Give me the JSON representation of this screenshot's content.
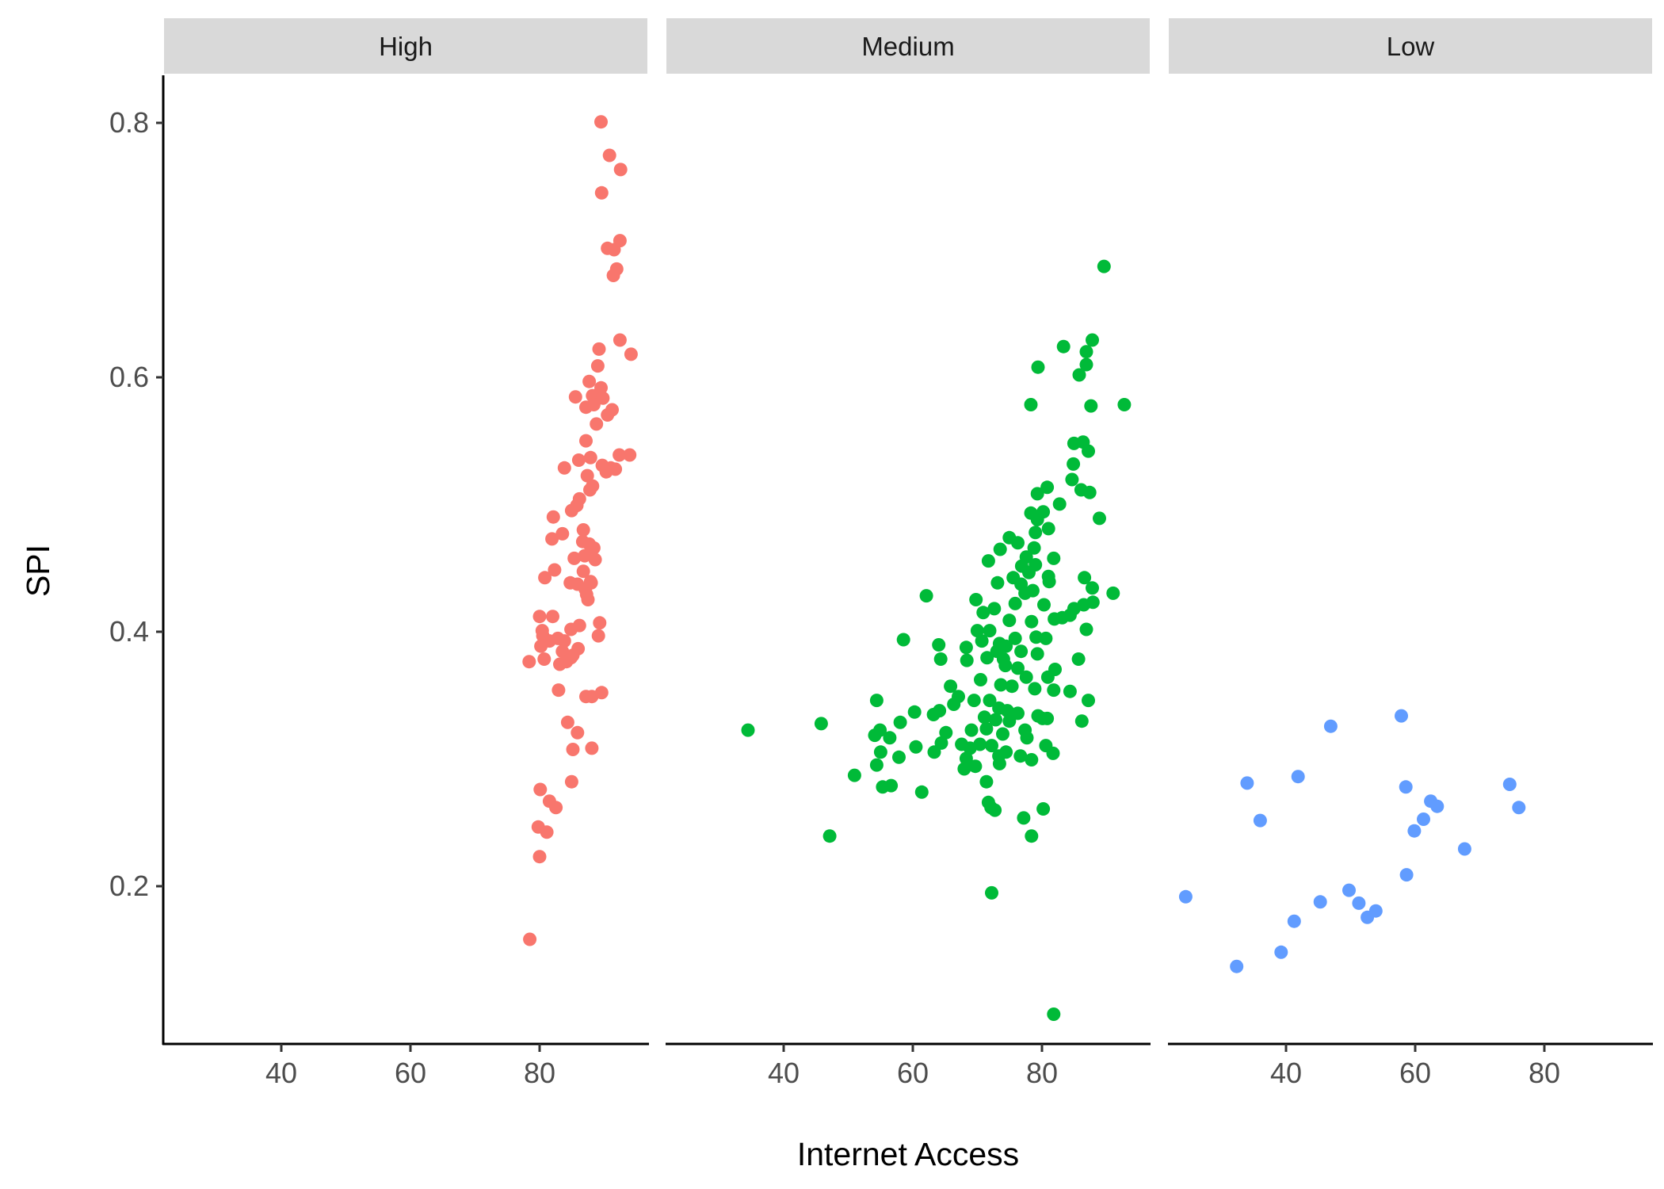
{
  "chart_data": {
    "type": "scatter",
    "xlabel": "Internet Access",
    "ylabel": "SPI",
    "xlim": [
      22,
      96
    ],
    "ylim": [
      0.09,
      0.84
    ],
    "x_ticks": [
      40,
      60,
      80
    ],
    "y_ticks": [
      0.2,
      0.4,
      0.6,
      0.8
    ],
    "y_tick_labels": [
      "0.2",
      "0.4",
      "0.6",
      "0.8"
    ],
    "grid": false,
    "legend": "none",
    "panels": [
      {
        "name": "High",
        "color": "#F8766D",
        "points": [
          [
            88.9,
            0.804
          ],
          [
            90.2,
            0.778
          ],
          [
            91.9,
            0.767
          ],
          [
            89.0,
            0.749
          ],
          [
            89.9,
            0.706
          ],
          [
            91.8,
            0.712
          ],
          [
            90.9,
            0.705
          ],
          [
            91.3,
            0.69
          ],
          [
            90.8,
            0.685
          ],
          [
            91.8,
            0.635
          ],
          [
            88.6,
            0.628
          ],
          [
            93.5,
            0.624
          ],
          [
            88.4,
            0.615
          ],
          [
            87.1,
            0.603
          ],
          [
            88.9,
            0.598
          ],
          [
            87.6,
            0.592
          ],
          [
            85.0,
            0.591
          ],
          [
            89.2,
            0.59
          ],
          [
            86.6,
            0.583
          ],
          [
            87.8,
            0.585
          ],
          [
            90.6,
            0.581
          ],
          [
            89.9,
            0.577
          ],
          [
            88.2,
            0.57
          ],
          [
            86.6,
            0.557
          ],
          [
            93.3,
            0.546
          ],
          [
            91.7,
            0.546
          ],
          [
            87.3,
            0.544
          ],
          [
            85.5,
            0.542
          ],
          [
            89.1,
            0.538
          ],
          [
            90.4,
            0.536
          ],
          [
            91.1,
            0.535
          ],
          [
            89.7,
            0.533
          ],
          [
            83.3,
            0.536
          ],
          [
            86.8,
            0.53
          ],
          [
            87.6,
            0.522
          ],
          [
            87.2,
            0.519
          ],
          [
            85.6,
            0.512
          ],
          [
            85.2,
            0.507
          ],
          [
            84.4,
            0.503
          ],
          [
            81.6,
            0.498
          ],
          [
            86.2,
            0.488
          ],
          [
            83.0,
            0.485
          ],
          [
            81.4,
            0.481
          ],
          [
            86.1,
            0.479
          ],
          [
            87.1,
            0.477
          ],
          [
            87.8,
            0.474
          ],
          [
            86.4,
            0.468
          ],
          [
            84.8,
            0.466
          ],
          [
            88.0,
            0.465
          ],
          [
            81.8,
            0.457
          ],
          [
            86.2,
            0.456
          ],
          [
            80.3,
            0.451
          ],
          [
            87.3,
            0.448
          ],
          [
            87.4,
            0.447
          ],
          [
            85.3,
            0.446
          ],
          [
            84.2,
            0.447
          ],
          [
            86.5,
            0.442
          ],
          [
            86.7,
            0.438
          ],
          [
            86.9,
            0.434
          ],
          [
            81.5,
            0.421
          ],
          [
            79.5,
            0.421
          ],
          [
            88.7,
            0.416
          ],
          [
            85.6,
            0.414
          ],
          [
            79.9,
            0.41
          ],
          [
            84.3,
            0.411
          ],
          [
            80.0,
            0.406
          ],
          [
            82.3,
            0.404
          ],
          [
            88.5,
            0.406
          ],
          [
            81.0,
            0.402
          ],
          [
            83.3,
            0.402
          ],
          [
            79.7,
            0.398
          ],
          [
            85.4,
            0.396
          ],
          [
            83.0,
            0.394
          ],
          [
            84.6,
            0.391
          ],
          [
            80.2,
            0.388
          ],
          [
            84.3,
            0.389
          ],
          [
            77.9,
            0.386
          ],
          [
            82.6,
            0.384
          ],
          [
            83.6,
            0.386
          ],
          [
            82.4,
            0.364
          ],
          [
            86.6,
            0.359
          ],
          [
            87.5,
            0.359
          ],
          [
            89.0,
            0.362
          ],
          [
            83.8,
            0.339
          ],
          [
            85.3,
            0.331
          ],
          [
            84.6,
            0.318
          ],
          [
            87.5,
            0.319
          ],
          [
            84.4,
            0.293
          ],
          [
            79.6,
            0.287
          ],
          [
            81.0,
            0.278
          ],
          [
            82.0,
            0.273
          ],
          [
            79.3,
            0.258
          ],
          [
            80.6,
            0.254
          ],
          [
            79.5,
            0.235
          ],
          [
            78.0,
            0.171
          ]
        ]
      },
      {
        "name": "Medium",
        "color": "#00BA38",
        "points": [
          [
            89.0,
            0.692
          ],
          [
            87.2,
            0.635
          ],
          [
            82.8,
            0.63
          ],
          [
            86.3,
            0.626
          ],
          [
            86.3,
            0.616
          ],
          [
            78.9,
            0.614
          ],
          [
            85.2,
            0.608
          ],
          [
            77.8,
            0.585
          ],
          [
            87.0,
            0.584
          ],
          [
            92.1,
            0.585
          ],
          [
            84.4,
            0.555
          ],
          [
            85.8,
            0.556
          ],
          [
            86.6,
            0.549
          ],
          [
            84.3,
            0.539
          ],
          [
            80.3,
            0.521
          ],
          [
            84.1,
            0.527
          ],
          [
            78.8,
            0.516
          ],
          [
            85.5,
            0.519
          ],
          [
            86.8,
            0.517
          ],
          [
            82.2,
            0.508
          ],
          [
            79.7,
            0.502
          ],
          [
            77.8,
            0.501
          ],
          [
            78.8,
            0.496
          ],
          [
            88.3,
            0.497
          ],
          [
            80.5,
            0.489
          ],
          [
            78.5,
            0.486
          ],
          [
            74.5,
            0.482
          ],
          [
            75.8,
            0.478
          ],
          [
            73.1,
            0.473
          ],
          [
            78.3,
            0.474
          ],
          [
            77.1,
            0.467
          ],
          [
            76.4,
            0.46
          ],
          [
            78.5,
            0.461
          ],
          [
            71.3,
            0.464
          ],
          [
            81.3,
            0.466
          ],
          [
            77.5,
            0.455
          ],
          [
            80.5,
            0.452
          ],
          [
            72.7,
            0.447
          ],
          [
            75.1,
            0.451
          ],
          [
            76.3,
            0.446
          ],
          [
            80.6,
            0.448
          ],
          [
            86.0,
            0.451
          ],
          [
            87.2,
            0.443
          ],
          [
            78.1,
            0.441
          ],
          [
            76.9,
            0.439
          ],
          [
            90.4,
            0.439
          ],
          [
            61.8,
            0.437
          ],
          [
            69.4,
            0.434
          ],
          [
            75.4,
            0.431
          ],
          [
            79.8,
            0.43
          ],
          [
            85.9,
            0.43
          ],
          [
            87.3,
            0.432
          ],
          [
            72.2,
            0.427
          ],
          [
            84.4,
            0.427
          ],
          [
            70.5,
            0.424
          ],
          [
            74.5,
            0.418
          ],
          [
            77.9,
            0.417
          ],
          [
            81.4,
            0.419
          ],
          [
            82.6,
            0.42
          ],
          [
            83.8,
            0.422
          ],
          [
            86.3,
            0.411
          ],
          [
            69.6,
            0.41
          ],
          [
            71.5,
            0.41
          ],
          [
            75.4,
            0.404
          ],
          [
            78.6,
            0.405
          ],
          [
            70.3,
            0.402
          ],
          [
            80.1,
            0.404
          ],
          [
            58.3,
            0.403
          ],
          [
            73.0,
            0.4
          ],
          [
            74.0,
            0.398
          ],
          [
            67.9,
            0.397
          ],
          [
            72.6,
            0.394
          ],
          [
            76.3,
            0.394
          ],
          [
            78.8,
            0.392
          ],
          [
            63.7,
            0.399
          ],
          [
            71.1,
            0.389
          ],
          [
            73.6,
            0.388
          ],
          [
            85.1,
            0.388
          ],
          [
            68.0,
            0.387
          ],
          [
            64.0,
            0.388
          ],
          [
            73.9,
            0.383
          ],
          [
            75.8,
            0.381
          ],
          [
            81.5,
            0.38
          ],
          [
            77.1,
            0.374
          ],
          [
            80.4,
            0.374
          ],
          [
            70.1,
            0.372
          ],
          [
            73.2,
            0.368
          ],
          [
            65.5,
            0.367
          ],
          [
            74.9,
            0.367
          ],
          [
            78.4,
            0.365
          ],
          [
            81.3,
            0.364
          ],
          [
            83.8,
            0.363
          ],
          [
            66.7,
            0.359
          ],
          [
            69.1,
            0.356
          ],
          [
            71.5,
            0.356
          ],
          [
            86.6,
            0.356
          ],
          [
            54.2,
            0.356
          ],
          [
            66.0,
            0.353
          ],
          [
            72.9,
            0.35
          ],
          [
            74.2,
            0.348
          ],
          [
            75.8,
            0.346
          ],
          [
            78.9,
            0.344
          ],
          [
            62.9,
            0.345
          ],
          [
            70.7,
            0.343
          ],
          [
            63.8,
            0.348
          ],
          [
            72.4,
            0.341
          ],
          [
            74.5,
            0.34
          ],
          [
            79.6,
            0.342
          ],
          [
            80.3,
            0.342
          ],
          [
            60.0,
            0.347
          ],
          [
            85.6,
            0.34
          ],
          [
            45.7,
            0.338
          ],
          [
            57.8,
            0.339
          ],
          [
            34.5,
            0.333
          ],
          [
            76.9,
            0.333
          ],
          [
            71.0,
            0.334
          ],
          [
            68.7,
            0.333
          ],
          [
            54.7,
            0.333
          ],
          [
            64.8,
            0.331
          ],
          [
            73.5,
            0.33
          ],
          [
            53.9,
            0.329
          ],
          [
            56.2,
            0.327
          ],
          [
            77.2,
            0.327
          ],
          [
            64.1,
            0.323
          ],
          [
            67.2,
            0.322
          ],
          [
            70.0,
            0.322
          ],
          [
            71.8,
            0.321
          ],
          [
            80.1,
            0.321
          ],
          [
            68.5,
            0.319
          ],
          [
            60.2,
            0.32
          ],
          [
            74.0,
            0.316
          ],
          [
            81.2,
            0.315
          ],
          [
            54.8,
            0.316
          ],
          [
            63.0,
            0.316
          ],
          [
            72.9,
            0.313
          ],
          [
            67.9,
            0.311
          ],
          [
            76.2,
            0.313
          ],
          [
            57.6,
            0.312
          ],
          [
            77.9,
            0.31
          ],
          [
            73.0,
            0.307
          ],
          [
            69.3,
            0.305
          ],
          [
            67.6,
            0.303
          ],
          [
            54.2,
            0.306
          ],
          [
            50.8,
            0.298
          ],
          [
            71.0,
            0.293
          ],
          [
            55.1,
            0.289
          ],
          [
            56.4,
            0.29
          ],
          [
            61.1,
            0.285
          ],
          [
            71.3,
            0.277
          ],
          [
            72.3,
            0.271
          ],
          [
            71.7,
            0.273
          ],
          [
            79.7,
            0.272
          ],
          [
            76.7,
            0.265
          ],
          [
            47.0,
            0.251
          ],
          [
            77.9,
            0.251
          ],
          [
            71.8,
            0.207
          ],
          [
            81.3,
            0.113
          ]
        ]
      },
      {
        "name": "Low",
        "color": "#619CFF",
        "points": [
          [
            57.6,
            0.344
          ],
          [
            46.8,
            0.336
          ],
          [
            41.8,
            0.297
          ],
          [
            34.0,
            0.292
          ],
          [
            58.3,
            0.289
          ],
          [
            74.2,
            0.291
          ],
          [
            62.1,
            0.278
          ],
          [
            63.1,
            0.274
          ],
          [
            75.6,
            0.273
          ],
          [
            36.0,
            0.263
          ],
          [
            61.0,
            0.264
          ],
          [
            59.6,
            0.255
          ],
          [
            67.3,
            0.241
          ],
          [
            58.4,
            0.221
          ],
          [
            24.6,
            0.204
          ],
          [
            49.6,
            0.209
          ],
          [
            45.2,
            0.2
          ],
          [
            51.1,
            0.199
          ],
          [
            53.7,
            0.193
          ],
          [
            52.4,
            0.188
          ],
          [
            41.2,
            0.185
          ],
          [
            39.2,
            0.161
          ],
          [
            32.4,
            0.15
          ]
        ]
      }
    ]
  }
}
